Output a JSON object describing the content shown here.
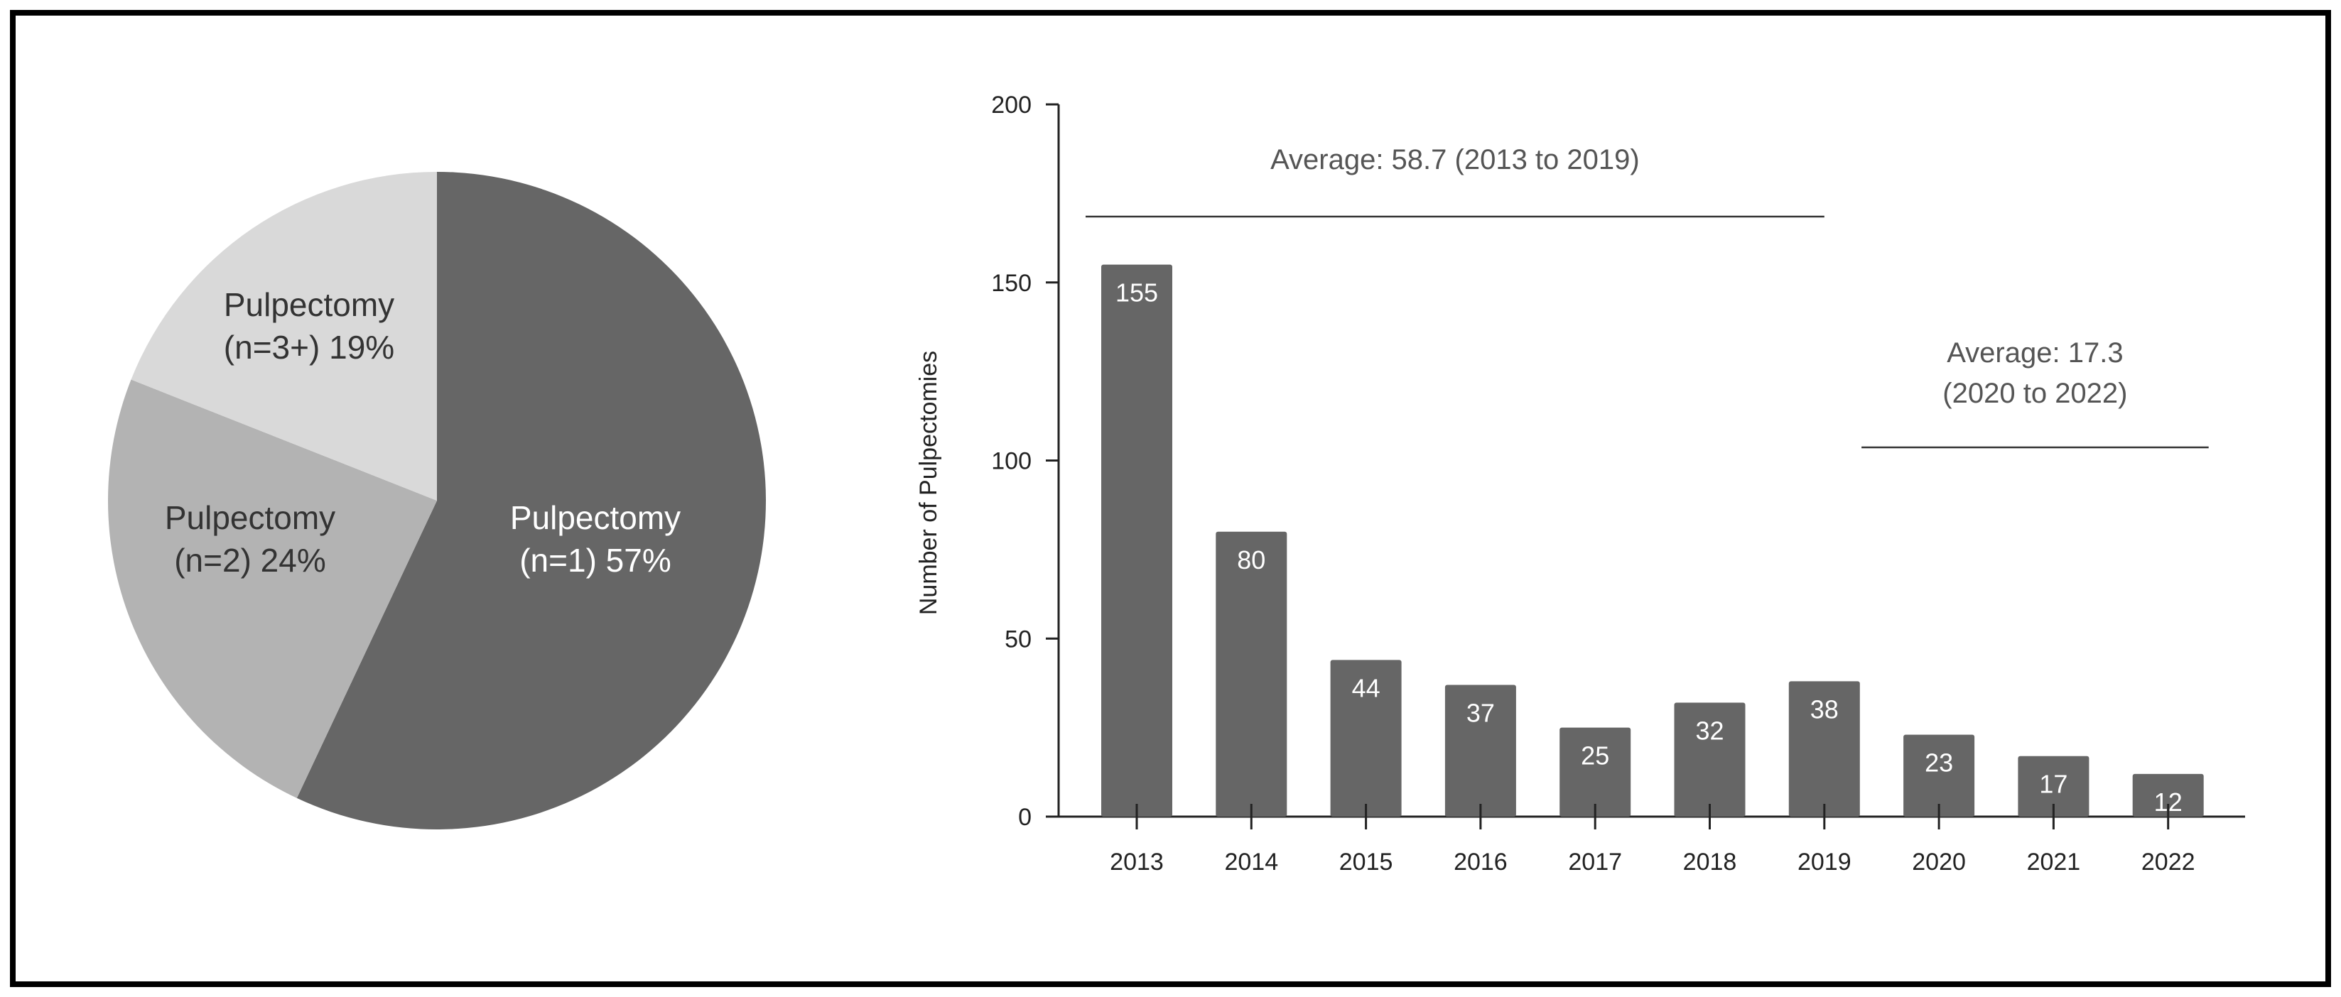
{
  "chart_data": [
    {
      "type": "pie",
      "slices": [
        {
          "label_line1": "Pulpectomy",
          "label_line2": "(n=1)  57%",
          "value": 57,
          "color": "#666666",
          "label_color": "#ffffff"
        },
        {
          "label_line1": "Pulpectomy",
          "label_line2": "(n=2)  24%",
          "value": 24,
          "color": "#b3b3b3",
          "label_color": "#333333"
        },
        {
          "label_line1": "Pulpectomy",
          "label_line2": "(n=3+)  19%",
          "value": 19,
          "color": "#d9d9d9",
          "label_color": "#333333"
        }
      ]
    },
    {
      "type": "bar",
      "ylabel": "Number of Pulpectomies",
      "ylim": [
        0,
        200
      ],
      "yticks": [
        0,
        50,
        100,
        150,
        200
      ],
      "categories": [
        "2013",
        "2014",
        "2015",
        "2016",
        "2017",
        "2018",
        "2019",
        "2020",
        "2021",
        "2022"
      ],
      "values": [
        155,
        80,
        44,
        37,
        25,
        32,
        38,
        23,
        17,
        12
      ],
      "bar_color": "#666666",
      "annotations": [
        {
          "text_line1": "Average: 58.7 (2013 to 2019)",
          "text_line2": "",
          "from": "2013",
          "to": "2019"
        },
        {
          "text_line1": "Average: 17.3",
          "text_line2": "(2020 to 2022)",
          "from": "2020",
          "to": "2022"
        }
      ]
    }
  ]
}
